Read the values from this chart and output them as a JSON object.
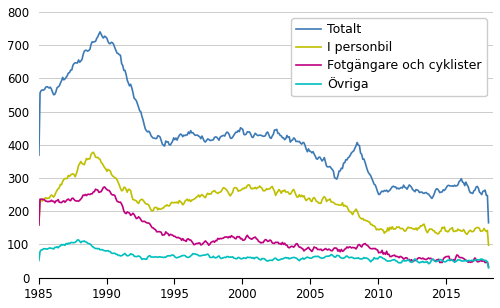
{
  "title": "",
  "series": {
    "Totalt": {
      "color": "#3d7ab5",
      "linewidth": 1.2,
      "label": "Totalt"
    },
    "personbil": {
      "color": "#bfbf00",
      "linewidth": 1.2,
      "label": "I personbil"
    },
    "fotgangare": {
      "color": "#bf007f",
      "linewidth": 1.2,
      "label": "Fotgängare och cyklister"
    },
    "ovriga": {
      "color": "#00bfbf",
      "linewidth": 1.2,
      "label": "Övriga"
    }
  },
  "xlim": [
    1985,
    2018.5
  ],
  "ylim": [
    0,
    800
  ],
  "yticks": [
    0,
    100,
    200,
    300,
    400,
    500,
    600,
    700,
    800
  ],
  "xticks": [
    1985,
    1990,
    1995,
    2000,
    2005,
    2010,
    2015
  ],
  "grid_color": "#cccccc",
  "background_color": "#ffffff",
  "legend_fontsize": 9,
  "tick_fontsize": 8.5
}
